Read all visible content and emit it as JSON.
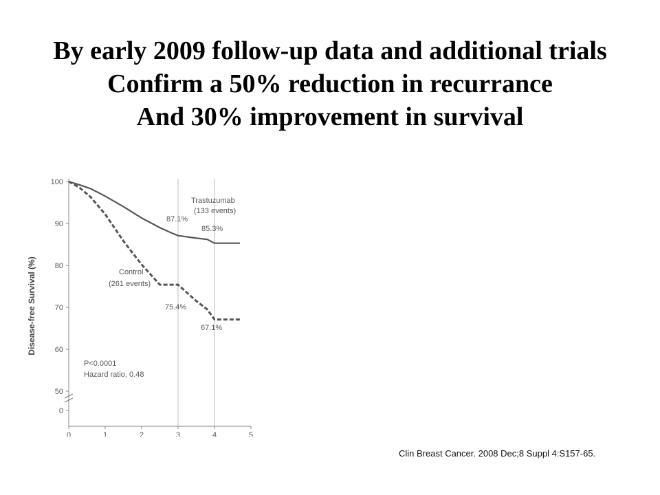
{
  "slide": {
    "title_lines": [
      "By early 2009 follow-up data and additional trials",
      "Confirm a 50% reduction in recurrance",
      "And 30% improvement in survival"
    ],
    "citation": "Clin Breast Cancer. 2008 Dec;8 Suppl 4:S157-65."
  },
  "chart_data": {
    "type": "line",
    "title": "",
    "xlabel": "",
    "ylabel": "Disease-free Survival (%)",
    "xlim": [
      0,
      5
    ],
    "ylim": [
      50,
      100
    ],
    "axis_break": true,
    "x_ticks": [
      "0",
      "1",
      "2",
      "3",
      "4",
      "5"
    ],
    "y_ticks": [
      "0",
      "50",
      "60",
      "70",
      "80",
      "90",
      "100"
    ],
    "reference_lines_x": [
      3,
      4
    ],
    "grid": false,
    "series": [
      {
        "name": "Trastuzumab",
        "style": "solid",
        "color": "#555555",
        "x": [
          0,
          0.3,
          0.6,
          1.0,
          1.5,
          2.0,
          2.5,
          2.8,
          3.0,
          3.5,
          3.8,
          4.0,
          4.5,
          4.7
        ],
        "y": [
          100,
          99.2,
          98.3,
          96.5,
          94.0,
          91.3,
          89.0,
          87.8,
          87.1,
          86.5,
          86.2,
          85.3,
          85.3,
          85.3
        ]
      },
      {
        "name": "Control",
        "style": "dashed",
        "color": "#555555",
        "x": [
          0,
          0.3,
          0.6,
          1.0,
          1.5,
          2.0,
          2.5,
          3.0,
          3.5,
          3.8,
          4.0,
          4.3,
          4.7
        ],
        "y": [
          100,
          98.5,
          96.3,
          92.2,
          85.8,
          80.2,
          75.4,
          75.4,
          71.5,
          69.5,
          67.1,
          67.1,
          67.1
        ]
      }
    ],
    "annotations": {
      "trastuzumab_legend": [
        "Trastuzumab",
        "(133 events)"
      ],
      "control_legend": [
        "Control",
        "(261 events)"
      ],
      "trastuzumab_3yr": "87.1%",
      "trastuzumab_4yr": "85.3%",
      "control_3yr": "75.4%",
      "control_4yr": "67.1%",
      "stats": [
        "P<0.0001",
        "Hazard ratio, 0.48"
      ]
    }
  }
}
